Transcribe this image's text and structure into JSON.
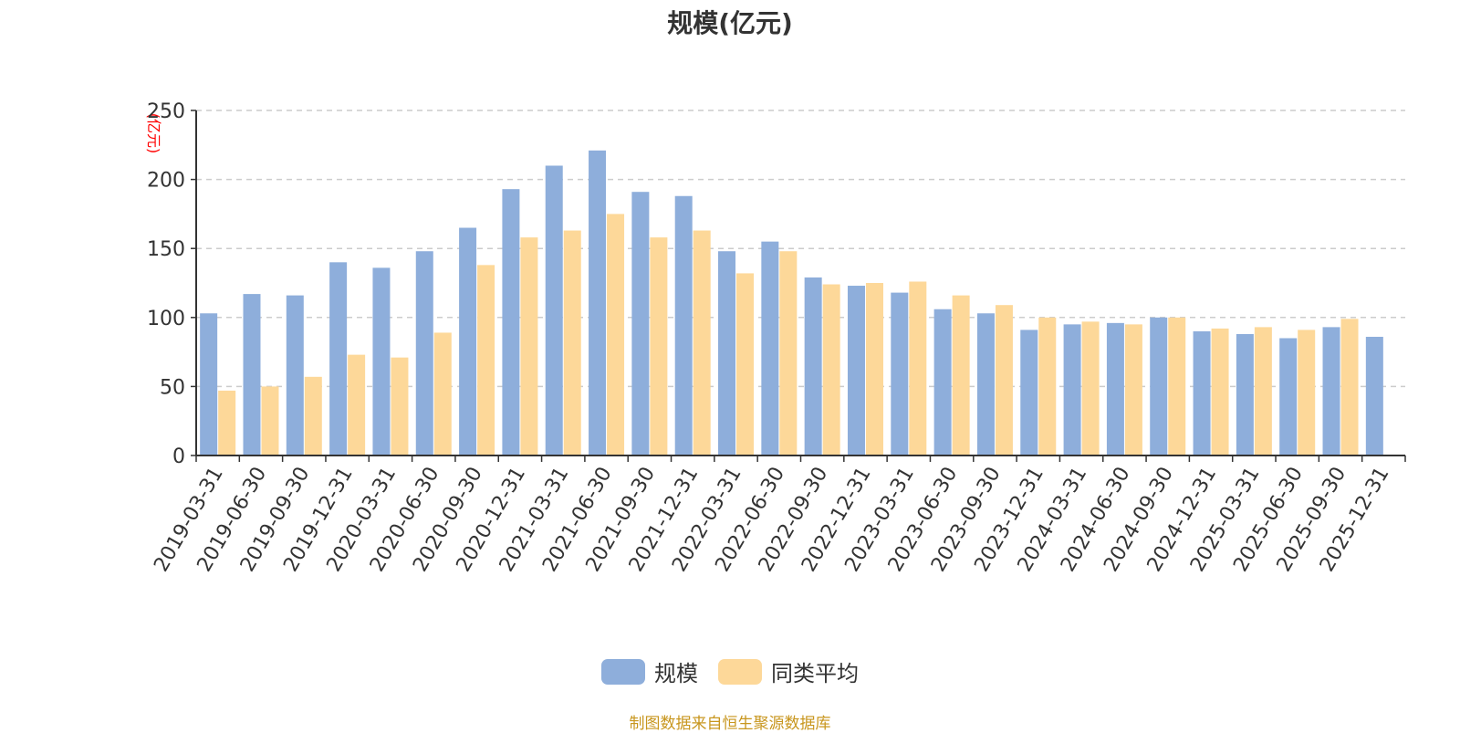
{
  "colors": {
    "series_1": "#8eaedb",
    "series_2": "#fdd899",
    "grid": "#cccccc",
    "axis": "#333333",
    "unit": "#ff0000",
    "source": "#c8961e"
  },
  "chart_data": {
    "type": "bar",
    "title": "规模(亿元)",
    "unit_label": "(亿元)",
    "ylim": [
      0,
      250
    ],
    "yticks": [
      0,
      50,
      100,
      150,
      200,
      250
    ],
    "grid": "horizontal dashed",
    "legend_position": "bottom",
    "categories": [
      "2019-03-31",
      "2019-06-30",
      "2019-09-30",
      "2019-12-31",
      "2020-03-31",
      "2020-06-30",
      "2020-09-30",
      "2020-12-31",
      "2021-03-31",
      "2021-06-30",
      "2021-09-30",
      "2021-12-31",
      "2022-03-31",
      "2022-06-30",
      "2022-09-30",
      "2022-12-31",
      "2023-03-31",
      "2023-06-30",
      "2023-09-30",
      "2023-12-31",
      "2024-03-31",
      "2024-06-30",
      "2024-09-30",
      "2024-12-31",
      "2025-03-31",
      "2025-06-30",
      "2025-09-30",
      "2025-12-31"
    ],
    "series": [
      {
        "name": "规模",
        "values": [
          103,
          117,
          116,
          140,
          136,
          148,
          165,
          193,
          210,
          221,
          191,
          188,
          148,
          155,
          129,
          123,
          118,
          106,
          103,
          91,
          95,
          96,
          100,
          90,
          88,
          85,
          93,
          86
        ]
      },
      {
        "name": "同类平均",
        "values": [
          47,
          50,
          57,
          73,
          71,
          89,
          138,
          158,
          163,
          175,
          158,
          163,
          132,
          148,
          124,
          125,
          126,
          116,
          109,
          100,
          97,
          95,
          100,
          92,
          93,
          91,
          99,
          null
        ]
      }
    ]
  },
  "source_note": "制图数据来自恒生聚源数据库"
}
